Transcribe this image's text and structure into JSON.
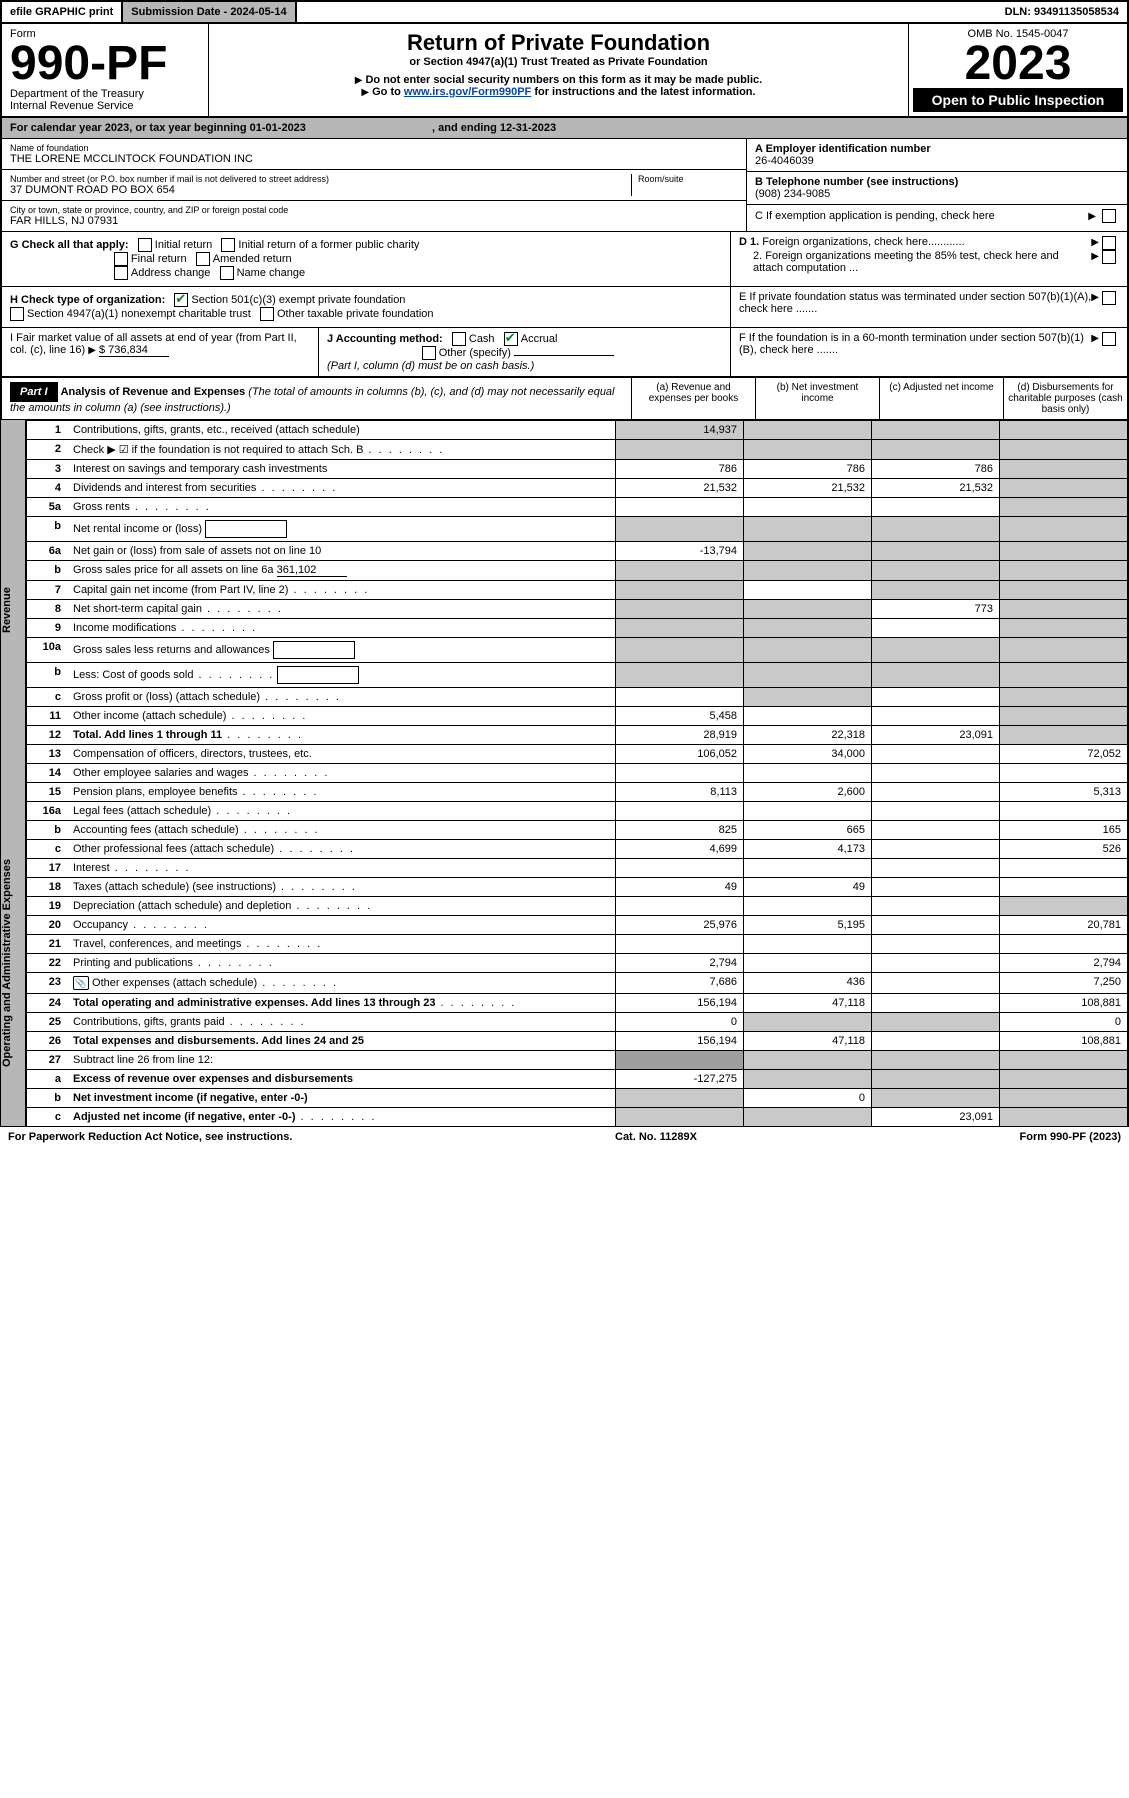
{
  "header": {
    "efile_label": "efile GRAPHIC print",
    "submission_label": "Submission Date - 2024-05-14",
    "dln_label": "DLN: 93491135058534",
    "form_word": "Form",
    "form_no": "990-PF",
    "dept": "Department of the Treasury",
    "irs": "Internal Revenue Service",
    "title": "Return of Private Foundation",
    "subtitle": "or Section 4947(a)(1) Trust Treated as Private Foundation",
    "warn1": "Do not enter social security numbers on this form as it may be made public.",
    "warn2_pre": "Go to ",
    "warn2_link": "www.irs.gov/Form990PF",
    "warn2_post": " for instructions and the latest information.",
    "omb": "OMB No. 1545-0047",
    "year": "2023",
    "open": "Open to Public Inspection"
  },
  "cal": {
    "text_a": "For calendar year 2023, or tax year beginning 01-01-2023",
    "text_b": ", and ending 12-31-2023"
  },
  "entity": {
    "name_label": "Name of foundation",
    "name": "THE LORENE MCCLINTOCK FOUNDATION INC",
    "addr_label": "Number and street (or P.O. box number if mail is not delivered to street address)",
    "room_label": "Room/suite",
    "addr": "37 DUMONT ROAD PO BOX 654",
    "city_label": "City or town, state or province, country, and ZIP or foreign postal code",
    "city": "FAR HILLS, NJ  07931",
    "a_label": "A Employer identification number",
    "a_val": "26-4046039",
    "b_label": "B Telephone number (see instructions)",
    "b_val": "(908) 234-9085",
    "c_label": "C If exemption application is pending, check here"
  },
  "checks": {
    "g_label": "G Check all that apply:",
    "g1": "Initial return",
    "g2": "Initial return of a former public charity",
    "g3": "Final return",
    "g4": "Amended return",
    "g5": "Address change",
    "g6": "Name change",
    "h_label": "H Check type of organization:",
    "h1": "Section 501(c)(3) exempt private foundation",
    "h2": "Section 4947(a)(1) nonexempt charitable trust",
    "h3": "Other taxable private foundation",
    "d1": "D 1. Foreign organizations, check here............",
    "d2": "2. Foreign organizations meeting the 85% test, check here and attach computation ...",
    "e": "E  If private foundation status was terminated under section 507(b)(1)(A), check here .......",
    "i_label": "I Fair market value of all assets at end of year (from Part II, col. (c), line 16)",
    "i_val": "$  736,834",
    "j_label": "J Accounting method:",
    "j_cash": "Cash",
    "j_accrual": "Accrual",
    "j_other": "Other (specify)",
    "j_note": "(Part I, column (d) must be on cash basis.)",
    "f": "F  If the foundation is in a 60-month termination under section 507(b)(1)(B), check here ......."
  },
  "part1": {
    "label": "Part I",
    "title": "Analysis of Revenue and Expenses",
    "note": "(The total of amounts in columns (b), (c), and (d) may not necessarily equal the amounts in column (a) (see instructions).)",
    "col_a": "(a)  Revenue and expenses per books",
    "col_b": "(b)  Net investment income",
    "col_c": "(c)  Adjusted net income",
    "col_d": "(d)  Disbursements for charitable purposes (cash basis only)",
    "revenue_label": "Revenue",
    "opex_label": "Operating and Administrative Expenses"
  },
  "rows": [
    {
      "ln": "1",
      "desc": "Contributions, gifts, grants, etc., received (attach schedule)",
      "a": "14,937",
      "b": "",
      "c": "",
      "d": "",
      "da": true,
      "db": true,
      "dc": true,
      "dd": true
    },
    {
      "ln": "2",
      "desc": "Check ▶ ☑ if the foundation is not required to attach Sch. B",
      "dots": true,
      "a": "",
      "b": "",
      "c": "",
      "d": "",
      "shade_all": true
    },
    {
      "ln": "3",
      "desc": "Interest on savings and temporary cash investments",
      "a": "786",
      "b": "786",
      "c": "786",
      "d": ""
    },
    {
      "ln": "4",
      "desc": "Dividends and interest from securities",
      "dots": true,
      "a": "21,532",
      "b": "21,532",
      "c": "21,532",
      "d": ""
    },
    {
      "ln": "5a",
      "desc": "Gross rents",
      "dots": true,
      "a": "",
      "b": "",
      "c": "",
      "d": ""
    },
    {
      "ln": "b",
      "desc": "Net rental income or (loss)",
      "inline": true,
      "a": "",
      "b": "",
      "c": "",
      "d": "",
      "shade_all": true
    },
    {
      "ln": "6a",
      "desc": "Net gain or (loss) from sale of assets not on line 10",
      "a": "-13,794",
      "b": "",
      "c": "",
      "d": "",
      "db": true,
      "dc": true
    },
    {
      "ln": "b",
      "desc": "Gross sales price for all assets on line 6a",
      "inline_val": "361,102",
      "a": "",
      "b": "",
      "c": "",
      "d": "",
      "shade_all": true
    },
    {
      "ln": "7",
      "desc": "Capital gain net income (from Part IV, line 2)",
      "dots": true,
      "a": "",
      "b": "",
      "c": "",
      "d": "",
      "da": true,
      "dc": true
    },
    {
      "ln": "8",
      "desc": "Net short-term capital gain",
      "dots": true,
      "a": "",
      "b": "",
      "c": "773",
      "d": "",
      "da": true,
      "db": true
    },
    {
      "ln": "9",
      "desc": "Income modifications",
      "dots": true,
      "a": "",
      "b": "",
      "c": "",
      "d": "",
      "da": true,
      "db": true
    },
    {
      "ln": "10a",
      "desc": "Gross sales less returns and allowances",
      "inline": true,
      "a": "",
      "b": "",
      "c": "",
      "d": "",
      "shade_all": true
    },
    {
      "ln": "b",
      "desc": "Less: Cost of goods sold",
      "dots": true,
      "inline": true,
      "a": "",
      "b": "",
      "c": "",
      "d": "",
      "shade_all": true
    },
    {
      "ln": "c",
      "desc": "Gross profit or (loss) (attach schedule)",
      "dots": true,
      "a": "",
      "b": "",
      "c": "",
      "d": "",
      "db": true
    },
    {
      "ln": "11",
      "desc": "Other income (attach schedule)",
      "dots": true,
      "a": "5,458",
      "b": "",
      "c": "",
      "d": ""
    },
    {
      "ln": "12",
      "desc": "Total. Add lines 1 through 11",
      "dots": true,
      "bold": true,
      "a": "28,919",
      "b": "22,318",
      "c": "23,091",
      "d": ""
    },
    {
      "ln": "13",
      "desc": "Compensation of officers, directors, trustees, etc.",
      "a": "106,052",
      "b": "34,000",
      "c": "",
      "d": "72,052",
      "section": "opex"
    },
    {
      "ln": "14",
      "desc": "Other employee salaries and wages",
      "dots": true,
      "a": "",
      "b": "",
      "c": "",
      "d": ""
    },
    {
      "ln": "15",
      "desc": "Pension plans, employee benefits",
      "dots": true,
      "a": "8,113",
      "b": "2,600",
      "c": "",
      "d": "5,313"
    },
    {
      "ln": "16a",
      "desc": "Legal fees (attach schedule)",
      "dots": true,
      "a": "",
      "b": "",
      "c": "",
      "d": ""
    },
    {
      "ln": "b",
      "desc": "Accounting fees (attach schedule)",
      "dots": true,
      "a": "825",
      "b": "665",
      "c": "",
      "d": "165"
    },
    {
      "ln": "c",
      "desc": "Other professional fees (attach schedule)",
      "dots": true,
      "a": "4,699",
      "b": "4,173",
      "c": "",
      "d": "526"
    },
    {
      "ln": "17",
      "desc": "Interest",
      "dots": true,
      "a": "",
      "b": "",
      "c": "",
      "d": ""
    },
    {
      "ln": "18",
      "desc": "Taxes (attach schedule) (see instructions)",
      "dots": true,
      "a": "49",
      "b": "49",
      "c": "",
      "d": ""
    },
    {
      "ln": "19",
      "desc": "Depreciation (attach schedule) and depletion",
      "dots": true,
      "a": "",
      "b": "",
      "c": "",
      "d": "",
      "dd": true
    },
    {
      "ln": "20",
      "desc": "Occupancy",
      "dots": true,
      "a": "25,976",
      "b": "5,195",
      "c": "",
      "d": "20,781"
    },
    {
      "ln": "21",
      "desc": "Travel, conferences, and meetings",
      "dots": true,
      "a": "",
      "b": "",
      "c": "",
      "d": ""
    },
    {
      "ln": "22",
      "desc": "Printing and publications",
      "dots": true,
      "a": "2,794",
      "b": "",
      "c": "",
      "d": "2,794"
    },
    {
      "ln": "23",
      "desc": "Other expenses (attach schedule)",
      "dots": true,
      "icon": true,
      "a": "7,686",
      "b": "436",
      "c": "",
      "d": "7,250"
    },
    {
      "ln": "24",
      "desc": "Total operating and administrative expenses. Add lines 13 through 23",
      "dots": true,
      "bold": true,
      "a": "156,194",
      "b": "47,118",
      "c": "",
      "d": "108,881"
    },
    {
      "ln": "25",
      "desc": "Contributions, gifts, grants paid",
      "dots": true,
      "a": "0",
      "b": "",
      "c": "",
      "d": "0",
      "db": true,
      "dc": true
    },
    {
      "ln": "26",
      "desc": "Total expenses and disbursements. Add lines 24 and 25",
      "bold": true,
      "a": "156,194",
      "b": "47,118",
      "c": "",
      "d": "108,881"
    },
    {
      "ln": "27",
      "desc": "Subtract line 26 from line 12:",
      "a": "",
      "b": "",
      "c": "",
      "d": "",
      "shade_all": true,
      "darka": true
    },
    {
      "ln": "a",
      "desc": "Excess of revenue over expenses and disbursements",
      "bold": true,
      "a": "-127,275",
      "b": "",
      "c": "",
      "d": "",
      "db": true,
      "dc": true,
      "dd": true
    },
    {
      "ln": "b",
      "desc": "Net investment income (if negative, enter -0-)",
      "bold": true,
      "a": "",
      "b": "0",
      "c": "",
      "d": "",
      "da": true,
      "dc": true,
      "dd": true
    },
    {
      "ln": "c",
      "desc": "Adjusted net income (if negative, enter -0-)",
      "dots": true,
      "bold": true,
      "a": "",
      "b": "",
      "c": "23,091",
      "d": "",
      "da": true,
      "db": true,
      "dd": true
    }
  ],
  "footer": {
    "left": "For Paperwork Reduction Act Notice, see instructions.",
    "mid": "Cat. No. 11289X",
    "right": "Form 990-PF (2023)"
  }
}
